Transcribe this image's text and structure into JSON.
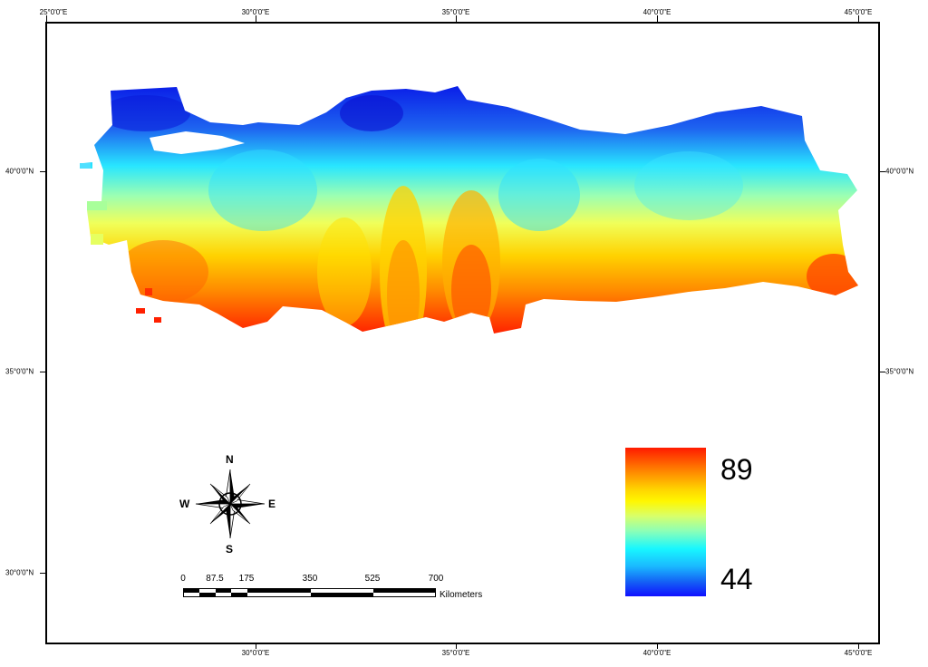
{
  "map": {
    "longitude_labels": [
      "25°0'0\"E",
      "30°0'0\"E",
      "35°0'0\"E",
      "40°0'0\"E",
      "45°0'0\"E"
    ],
    "latitude_labels": [
      "40°0'0\"N",
      "35°0'0\"N",
      "30°0'0\"N"
    ]
  },
  "legend": {
    "max_value": "89",
    "min_value": "44",
    "colors": [
      "#ff1a00",
      "#ff7a00",
      "#ffd400",
      "#fff700",
      "#8dffb6",
      "#18f7ff",
      "#1463f5",
      "#1010ff"
    ]
  },
  "scale_bar": {
    "labels": [
      "0",
      "87.5",
      "175",
      "350",
      "525",
      "700"
    ],
    "unit": "Kilometers"
  },
  "compass": {
    "north": "N",
    "south": "S",
    "east": "E",
    "west": "W"
  }
}
